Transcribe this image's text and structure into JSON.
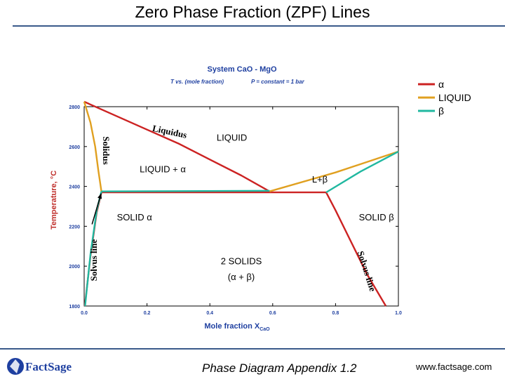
{
  "slide": {
    "title": "Zero Phase Fraction (ZPF) Lines",
    "footer_title": "Phase Diagram  Appendix 1.2",
    "footer_url": "www.factsage.com",
    "logo_text": "FactSage"
  },
  "colors": {
    "alpha": "#cc2222",
    "liquid": "#e0a020",
    "beta": "#20b8a0",
    "header_blue": "#1e3fa0",
    "axis_red": "#c0302c",
    "rule": "#3a5a8a"
  },
  "chart_data": {
    "type": "line",
    "title": "System CaO - MgO",
    "subtitle_left": "T vs. (mole fraction)",
    "subtitle_right": "P = constant = 1 bar",
    "xlabel": "Mole fraction X",
    "xlabel_sub": "CaO",
    "ylabel": "Temperature, °C",
    "xlim": [
      0,
      1
    ],
    "ylim": [
      1800,
      2800
    ],
    "xticks": [
      0,
      0.2,
      0.4,
      0.6,
      0.8,
      1
    ],
    "xtick_labels": [
      "0.0",
      "0.2",
      "0.4",
      "0.6",
      "0.8",
      "1.0"
    ],
    "yticks": [
      1800,
      2000,
      2200,
      2400,
      2600,
      2800
    ],
    "ytick_labels": [
      "1800",
      "2000",
      "2200",
      "2400",
      "2600",
      "2800"
    ],
    "legend": [
      {
        "symbol": "α",
        "color": "#cc2222"
      },
      {
        "symbol": "LIQUID",
        "color": "#e0a020"
      },
      {
        "symbol": "β",
        "color": "#20b8a0"
      }
    ],
    "series": [
      {
        "name": "alpha-liquidus",
        "color": "#cc2222",
        "points": [
          [
            0,
            2825
          ],
          [
            0.1,
            2755
          ],
          [
            0.2,
            2685
          ],
          [
            0.3,
            2615
          ],
          [
            0.4,
            2535
          ],
          [
            0.5,
            2455
          ],
          [
            0.59,
            2375
          ]
        ]
      },
      {
        "name": "alpha-solvus",
        "color": "#cc2222",
        "points": [
          [
            0.002,
            1800
          ],
          [
            0.02,
            2050
          ],
          [
            0.04,
            2270
          ],
          [
            0.055,
            2370
          ]
        ]
      },
      {
        "name": "alpha-eutectic",
        "color": "#cc2222",
        "points": [
          [
            0.055,
            2370
          ],
          [
            0.77,
            2370
          ]
        ]
      },
      {
        "name": "beta-solvus",
        "color": "#cc2222",
        "points": [
          [
            0.77,
            2370
          ],
          [
            0.8,
            2280
          ],
          [
            0.85,
            2120
          ],
          [
            0.9,
            1960
          ],
          [
            0.96,
            1800
          ]
        ]
      },
      {
        "name": "liquid-alpha-solidus",
        "color": "#e0a020",
        "points": [
          [
            0,
            2825
          ],
          [
            0.02,
            2720
          ],
          [
            0.035,
            2600
          ],
          [
            0.045,
            2480
          ],
          [
            0.055,
            2375
          ]
        ]
      },
      {
        "name": "liquid-beta-liquidus",
        "color": "#e0a020",
        "points": [
          [
            0.59,
            2375
          ],
          [
            0.8,
            2470
          ],
          [
            1,
            2575
          ]
        ]
      },
      {
        "name": "beta-solidus",
        "color": "#20b8a0",
        "points": [
          [
            0.77,
            2370
          ],
          [
            0.88,
            2475
          ],
          [
            1,
            2575
          ]
        ]
      },
      {
        "name": "beta-eutectic",
        "color": "#20b8a0",
        "points": [
          [
            0.055,
            2375
          ],
          [
            0.59,
            2378
          ]
        ]
      },
      {
        "name": "beta-alpha-solvus",
        "color": "#20b8a0",
        "points": [
          [
            0.003,
            1800
          ],
          [
            0.02,
            2060
          ],
          [
            0.04,
            2280
          ],
          [
            0.055,
            2375
          ]
        ]
      }
    ],
    "annotations": [
      {
        "text": "Liquidus",
        "x": 0.27,
        "y": 2660,
        "color": "#000000",
        "rotate": 12
      },
      {
        "text": "LIQUID",
        "x": 0.47,
        "y": 2630,
        "color": "#000000",
        "rotate": 0
      },
      {
        "text": "Solidus",
        "x": 0.06,
        "y": 2580,
        "color": "#000000",
        "rotate": 90
      },
      {
        "text": "LIQUID + α",
        "x": 0.25,
        "y": 2470,
        "color": "#000000",
        "rotate": 0
      },
      {
        "text": "L+β",
        "x": 0.75,
        "y": 2420,
        "color": "#000000",
        "rotate": 0
      },
      {
        "text": "SOLID α",
        "x": 0.16,
        "y": 2230,
        "color": "#000000",
        "rotate": 0
      },
      {
        "text": "SOLID β",
        "x": 0.93,
        "y": 2230,
        "color": "#000000",
        "rotate": 0
      },
      {
        "text": "2 SOLIDS",
        "x": 0.5,
        "y": 2010,
        "color": "#000000",
        "rotate": 0
      },
      {
        "text": "(α + β)",
        "x": 0.5,
        "y": 1930,
        "color": "#000000",
        "rotate": 0
      },
      {
        "text": "Solvus line",
        "x": 0.04,
        "y": 2030,
        "color": "#000000",
        "rotate": -90
      },
      {
        "text": "Solvus line",
        "x": 0.89,
        "y": 1970,
        "color": "#000000",
        "rotate": 72
      }
    ],
    "arrow": {
      "from": [
        0.025,
        2210
      ],
      "to": [
        0.054,
        2365
      ]
    }
  }
}
